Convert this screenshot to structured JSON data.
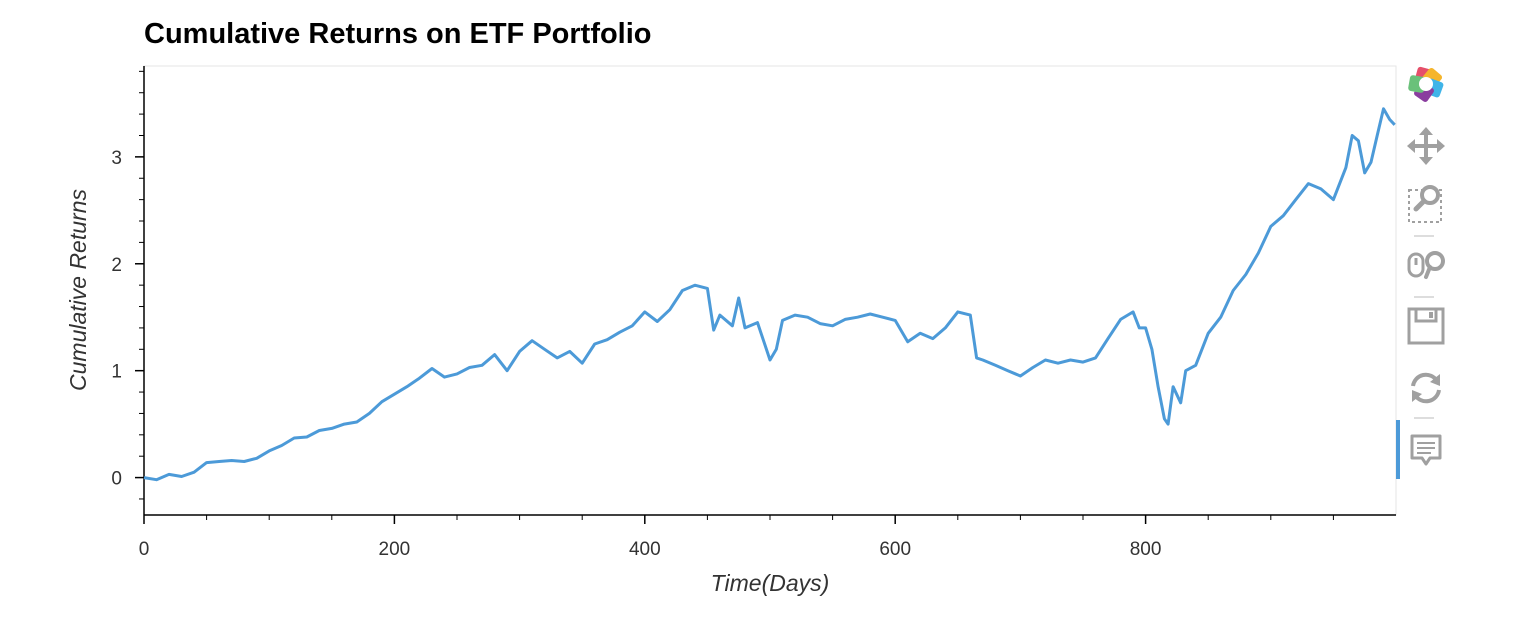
{
  "chart_data": {
    "type": "line",
    "title": "Cumulative Returns on ETF Portfolio",
    "xlabel": "Time(Days)",
    "ylabel": "Cumulative Returns",
    "xlim": [
      0,
      1000
    ],
    "ylim": [
      -0.35,
      3.85
    ],
    "x_ticks": [
      0,
      200,
      400,
      600,
      800
    ],
    "y_ticks": [
      0,
      1,
      2,
      3
    ],
    "grid": false,
    "line_color": "#4c9ad8",
    "series": [
      {
        "x": [
          0,
          10,
          20,
          30,
          40,
          50,
          60,
          70,
          80,
          90,
          100,
          110,
          120,
          130,
          140,
          150,
          160,
          170,
          180,
          190,
          200,
          210,
          220,
          230,
          240,
          250,
          260,
          270,
          280,
          290,
          300,
          310,
          320,
          330,
          340,
          350,
          360,
          370,
          380,
          390,
          400,
          410,
          420,
          430,
          440,
          450,
          455,
          460,
          470,
          475,
          480,
          490,
          500,
          505,
          510,
          520,
          530,
          540,
          550,
          560,
          570,
          580,
          590,
          600,
          610,
          620,
          630,
          640,
          650,
          660,
          665,
          670,
          680,
          690,
          700,
          710,
          720,
          730,
          740,
          750,
          760,
          770,
          780,
          790,
          795,
          800,
          805,
          810,
          815,
          818,
          822,
          828,
          832,
          840,
          850,
          860,
          870,
          880,
          890,
          900,
          910,
          920,
          930,
          940,
          950,
          960,
          965,
          970,
          975,
          980,
          985,
          990,
          995,
          999
        ],
        "y": [
          0.0,
          -0.02,
          0.03,
          0.01,
          0.05,
          0.14,
          0.15,
          0.16,
          0.15,
          0.18,
          0.25,
          0.3,
          0.37,
          0.38,
          0.44,
          0.46,
          0.5,
          0.52,
          0.6,
          0.71,
          0.78,
          0.85,
          0.93,
          1.02,
          0.94,
          0.97,
          1.03,
          1.05,
          1.15,
          1.0,
          1.18,
          1.28,
          1.2,
          1.12,
          1.18,
          1.07,
          1.25,
          1.29,
          1.36,
          1.42,
          1.55,
          1.46,
          1.57,
          1.75,
          1.8,
          1.77,
          1.38,
          1.52,
          1.42,
          1.68,
          1.4,
          1.45,
          1.1,
          1.2,
          1.47,
          1.52,
          1.5,
          1.44,
          1.42,
          1.48,
          1.5,
          1.53,
          1.5,
          1.47,
          1.27,
          1.35,
          1.3,
          1.4,
          1.55,
          1.52,
          1.12,
          1.1,
          1.05,
          1.0,
          0.95,
          1.03,
          1.1,
          1.07,
          1.1,
          1.08,
          1.12,
          1.3,
          1.48,
          1.55,
          1.4,
          1.4,
          1.2,
          0.85,
          0.55,
          0.5,
          0.85,
          0.7,
          1.0,
          1.05,
          1.35,
          1.5,
          1.75,
          1.9,
          2.1,
          2.35,
          2.45,
          2.6,
          2.75,
          2.7,
          2.6,
          2.9,
          3.2,
          3.15,
          2.85,
          2.95,
          3.2,
          3.45,
          3.35,
          3.3
        ]
      }
    ]
  },
  "toolbar": {
    "items": [
      {
        "name": "bokeh-logo-icon",
        "active": false
      },
      {
        "name": "pan-icon",
        "active": false
      },
      {
        "name": "box-zoom-icon",
        "active": false
      },
      {
        "name": "wheel-zoom-icon",
        "active": false
      },
      {
        "name": "save-icon",
        "active": false
      },
      {
        "name": "reset-icon",
        "active": false
      },
      {
        "name": "hover-icon",
        "active": true
      }
    ],
    "icon_color": "#a0a0a0",
    "active_color": "#4c9ad8"
  }
}
